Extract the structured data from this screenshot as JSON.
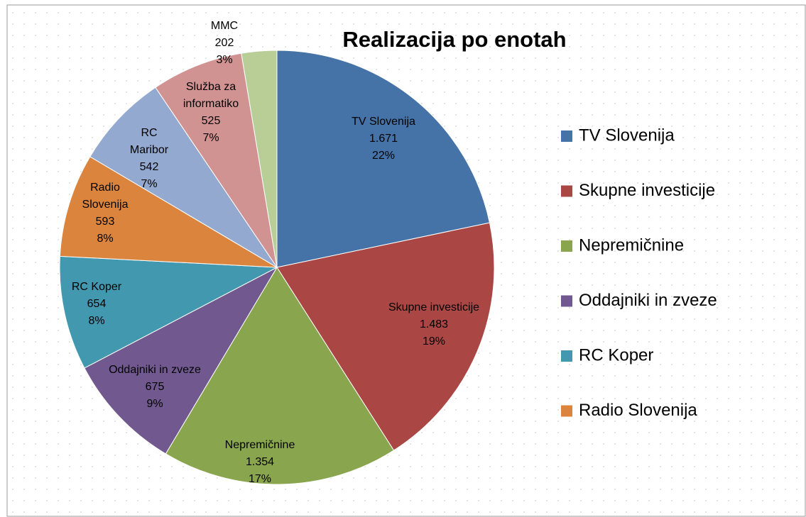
{
  "chart_data": {
    "type": "pie",
    "title": "Realizacija po enotah",
    "categories": [
      "TV Slovenija",
      "Skupne investicije",
      "Nepremičnine",
      "Oddajniki in zveze",
      "RC Koper",
      "Radio Slovenija",
      "RC Maribor",
      "Služba za informatiko",
      "MMC"
    ],
    "values": [
      1671,
      1483,
      1354,
      675,
      654,
      593,
      542,
      525,
      202
    ],
    "value_labels": [
      "1.671",
      "1.483",
      "1.354",
      "675",
      "654",
      "593",
      "542",
      "525",
      "202"
    ],
    "percent_labels": [
      "22%",
      "19%",
      "17%",
      "9%",
      "8%",
      "8%",
      "7%",
      "7%",
      "3%"
    ],
    "colors": [
      "#4572a7",
      "#aa4643",
      "#89a54e",
      "#71588f",
      "#4198af",
      "#db843d",
      "#93a9cf",
      "#d19392",
      "#b9cd96"
    ],
    "legend": [
      "TV Slovenija",
      "Skupne investicije",
      "Nepremičnine",
      "Oddajniki in zveze",
      "RC Koper",
      "Radio Slovenija"
    ]
  }
}
